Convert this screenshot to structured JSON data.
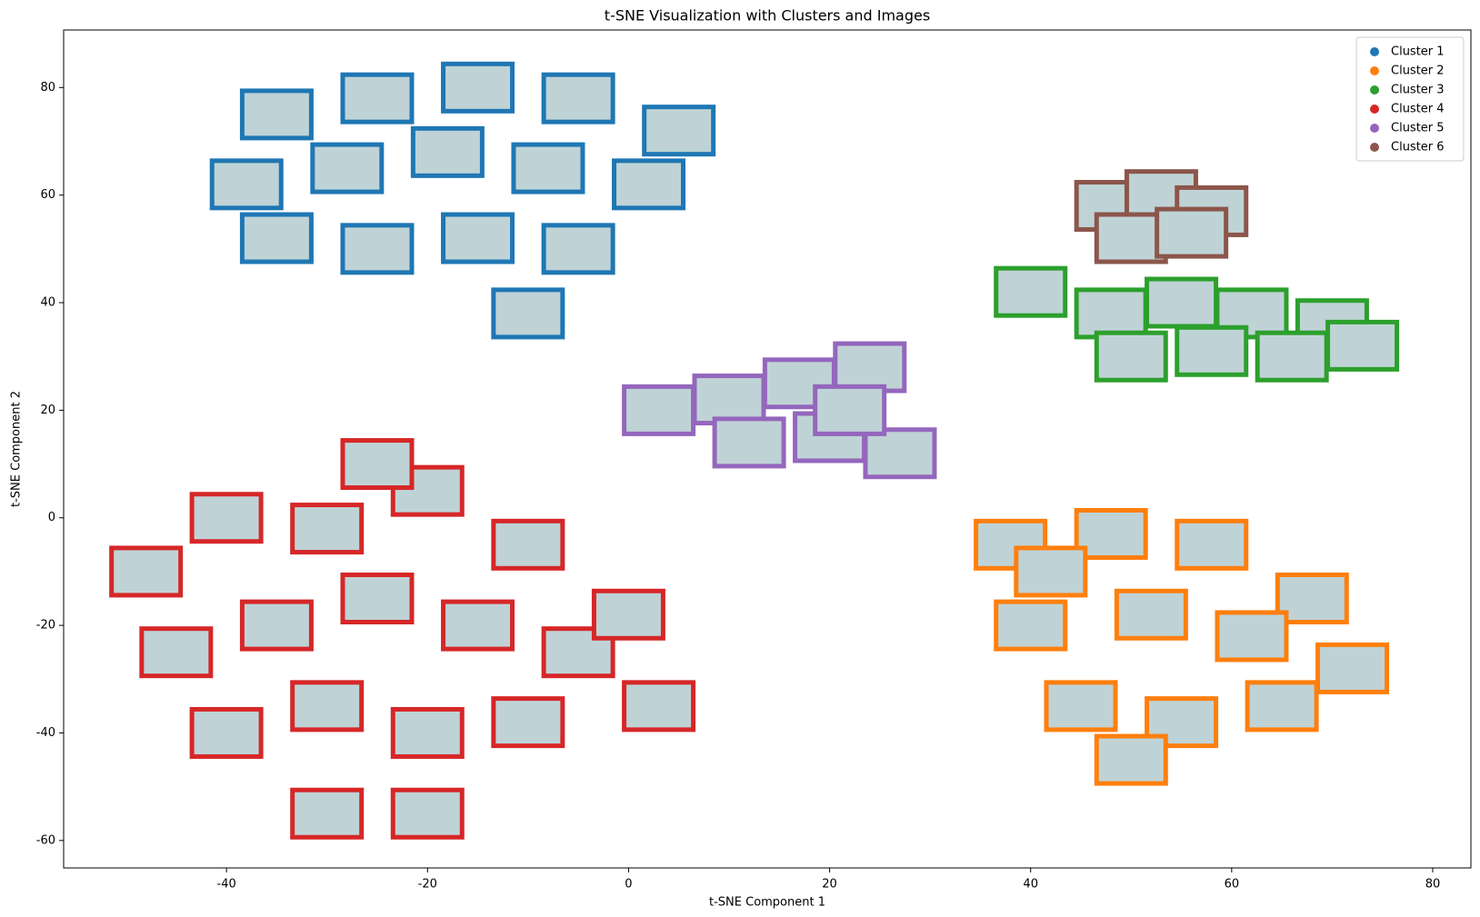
{
  "chart_data": {
    "type": "scatter",
    "title": "t-SNE Visualization with Clusters and Images",
    "xlabel": "t-SNE Component 1",
    "ylabel": "t-SNE Component 2",
    "xlim": [
      -56.2,
      83.8
    ],
    "ylim": [
      -65.1,
      90.7
    ],
    "xticks": [
      -40,
      -20,
      0,
      20,
      40,
      60,
      80
    ],
    "yticks": [
      -60,
      -40,
      -20,
      0,
      20,
      40,
      60,
      80
    ],
    "grid": false,
    "legend": "upper right",
    "series": [
      {
        "name": "Cluster 1",
        "color": "#1f77b4",
        "x": [
          -35,
          -25,
          -15,
          -5,
          5,
          -38,
          -28,
          -18,
          -8,
          2,
          -35,
          -25,
          -15,
          -5,
          -10
        ],
        "y": [
          75,
          78,
          80,
          78,
          72,
          62,
          65,
          68,
          65,
          62,
          52,
          50,
          52,
          50,
          38
        ]
      },
      {
        "name": "Cluster 2",
        "color": "#ff7f0e",
        "x": [
          38,
          48,
          58,
          68,
          40,
          52,
          62,
          72,
          45,
          55,
          65,
          50,
          42
        ],
        "y": [
          -5,
          -3,
          -5,
          -15,
          -20,
          -18,
          -22,
          -28,
          -35,
          -38,
          -35,
          -45,
          -10
        ]
      },
      {
        "name": "Cluster 3",
        "color": "#2ca02c",
        "x": [
          48,
          55,
          62,
          70,
          50,
          58,
          66,
          73,
          40
        ],
        "y": [
          38,
          40,
          38,
          36,
          30,
          31,
          30,
          32,
          42
        ]
      },
      {
        "name": "Cluster 4",
        "color": "#d62728",
        "x": [
          -48,
          -40,
          -30,
          -20,
          -10,
          -45,
          -35,
          -25,
          -15,
          -5,
          3,
          -40,
          -30,
          -20,
          -10,
          -30,
          -20,
          -25,
          0
        ],
        "y": [
          -10,
          0,
          -2,
          5,
          -5,
          -25,
          -20,
          -15,
          -20,
          -25,
          -35,
          -40,
          -35,
          -40,
          -38,
          -55,
          -55,
          10,
          -18
        ]
      },
      {
        "name": "Cluster 5",
        "color": "#9467bd",
        "x": [
          3,
          10,
          17,
          24,
          12,
          20,
          27,
          22
        ],
        "y": [
          20,
          22,
          25,
          28,
          14,
          15,
          12,
          20
        ]
      },
      {
        "name": "Cluster 6",
        "color": "#8c564b",
        "x": [
          48,
          53,
          58,
          50,
          56
        ],
        "y": [
          58,
          60,
          57,
          52,
          53
        ]
      }
    ]
  }
}
